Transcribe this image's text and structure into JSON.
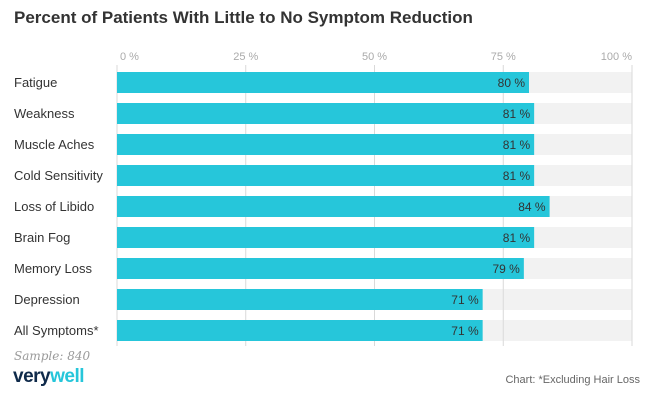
{
  "title": "Percent of Patients With Little to No Symptom Reduction",
  "sample": "Sample: 840",
  "brand": {
    "part1": "very",
    "part2": "well"
  },
  "footnote": "Chart: *Excluding Hair Loss",
  "colors": {
    "bar": "#26c6da",
    "track": "#f2f2f2",
    "grid": "#d9d9d9",
    "tick": "#aaaaaa",
    "label": "#333333",
    "value": "#333333"
  },
  "chart_data": {
    "type": "bar",
    "orientation": "horizontal",
    "title": "Percent of Patients With Little to No Symptom Reduction",
    "xlabel": "",
    "ylabel": "",
    "xlim": [
      0,
      100
    ],
    "ticks": [
      0,
      25,
      50,
      75,
      100
    ],
    "tick_labels": [
      "0 %",
      "25 %",
      "50 %",
      "75 %",
      "100 %"
    ],
    "categories": [
      "Fatigue",
      "Weakness",
      "Muscle Aches",
      "Cold Sensitivity",
      "Loss of Libido",
      "Brain Fog",
      "Memory Loss",
      "Depression",
      "All Symptoms*"
    ],
    "values": [
      80,
      81,
      81,
      81,
      84,
      81,
      79,
      71,
      71
    ],
    "value_labels": [
      "80 %",
      "81 %",
      "81 %",
      "81 %",
      "84 %",
      "81 %",
      "79 %",
      "71 %",
      "71 %"
    ]
  }
}
